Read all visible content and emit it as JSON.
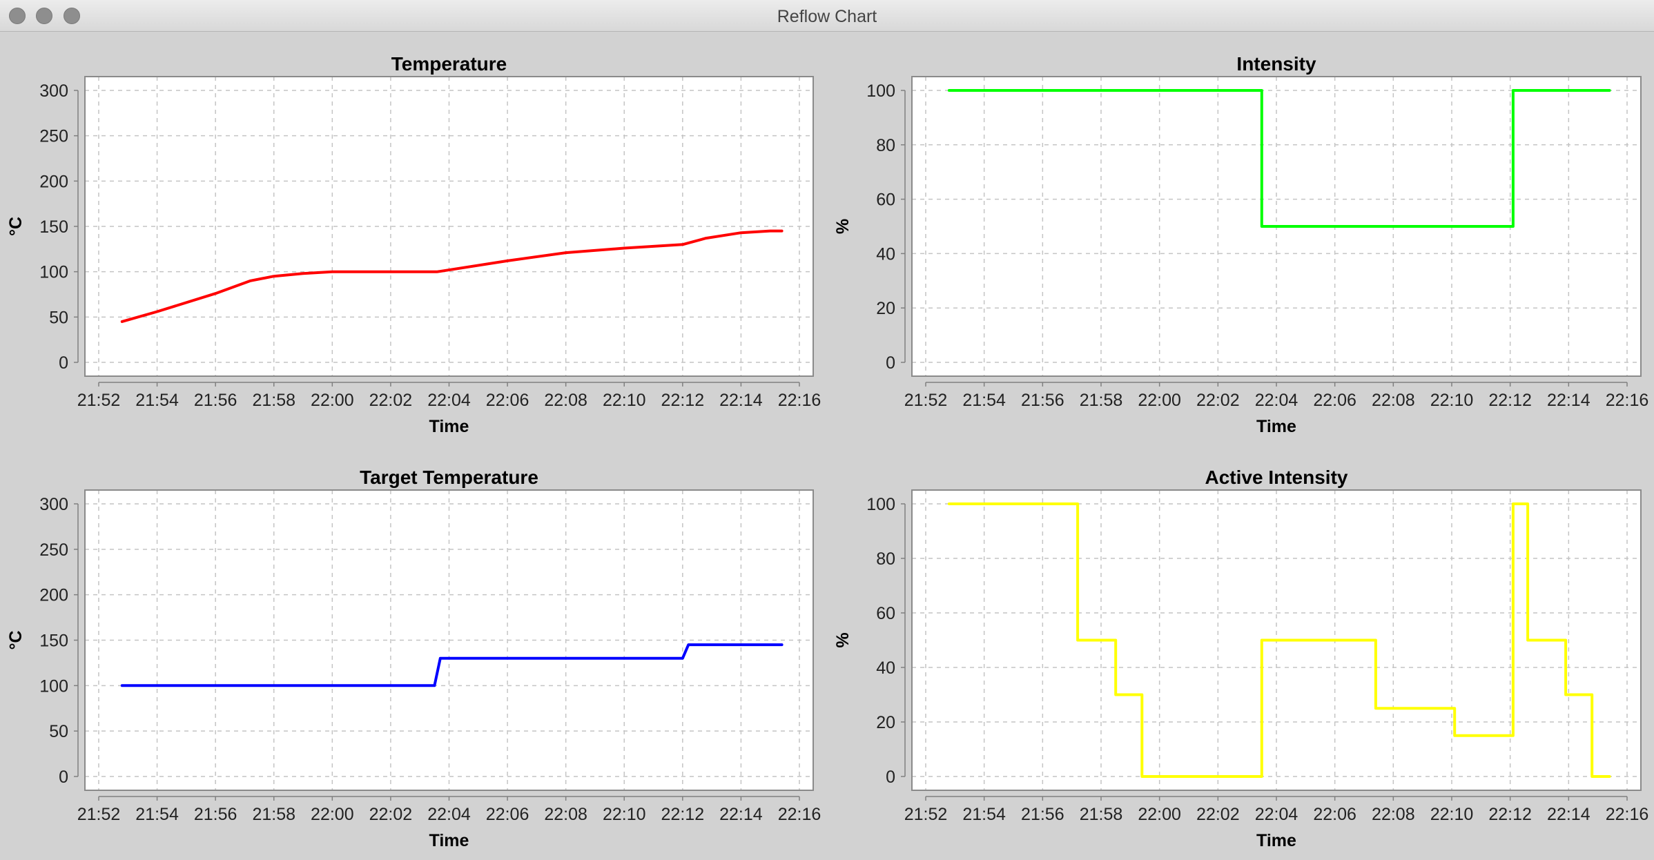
{
  "window": {
    "title": "Reflow Chart"
  },
  "chart_data": [
    {
      "type": "line",
      "title": "Temperature",
      "xlabel": "Time",
      "ylabel": "°C",
      "color": "#ff0000",
      "ylim": [
        0,
        300
      ],
      "yticks": [
        0,
        50,
        100,
        150,
        200,
        250,
        300
      ],
      "xlim": [
        "21:52",
        "22:16"
      ],
      "xticks": [
        "21:52",
        "21:54",
        "21:56",
        "21:58",
        "22:00",
        "22:02",
        "22:04",
        "22:06",
        "22:08",
        "22:10",
        "22:12",
        "22:14",
        "22:16"
      ],
      "grid": true,
      "legend": false,
      "series": [
        {
          "x": [
            "21:52:48",
            "21:54:00",
            "21:56:00",
            "21:57:12",
            "21:58:00",
            "21:59:00",
            "22:00:00",
            "22:03:36",
            "22:06:00",
            "22:08:00",
            "22:10:00",
            "22:12:00",
            "22:12:48",
            "22:14:00",
            "22:15:00",
            "22:15:24"
          ],
          "y": [
            45,
            56,
            76,
            90,
            95,
            98,
            100,
            100,
            112,
            121,
            126,
            130,
            137,
            143,
            145,
            145
          ]
        }
      ]
    },
    {
      "type": "line",
      "title": "Intensity",
      "xlabel": "Time",
      "ylabel": "%",
      "color": "#00ff00",
      "ylim": [
        0,
        100
      ],
      "yticks": [
        0,
        20,
        40,
        60,
        80,
        100
      ],
      "xlim": [
        "21:52",
        "22:16"
      ],
      "xticks": [
        "21:52",
        "21:54",
        "21:56",
        "21:58",
        "22:00",
        "22:02",
        "22:04",
        "22:06",
        "22:08",
        "22:10",
        "22:12",
        "22:14",
        "22:16"
      ],
      "grid": true,
      "legend": false,
      "series": [
        {
          "x": [
            "21:52:48",
            "22:03:30",
            "22:03:30",
            "22:12:06",
            "22:12:06",
            "22:15:24"
          ],
          "y": [
            100,
            100,
            50,
            50,
            100,
            100
          ]
        }
      ]
    },
    {
      "type": "line",
      "title": "Target Temperature",
      "xlabel": "Time",
      "ylabel": "°C",
      "color": "#0000ff",
      "ylim": [
        0,
        300
      ],
      "yticks": [
        0,
        50,
        100,
        150,
        200,
        250,
        300
      ],
      "xlim": [
        "21:52",
        "22:16"
      ],
      "xticks": [
        "21:52",
        "21:54",
        "21:56",
        "21:58",
        "22:00",
        "22:02",
        "22:04",
        "22:06",
        "22:08",
        "22:10",
        "22:12",
        "22:14",
        "22:16"
      ],
      "grid": true,
      "legend": false,
      "series": [
        {
          "x": [
            "21:52:48",
            "22:03:30",
            "22:03:42",
            "22:12:00",
            "22:12:12",
            "22:15:24"
          ],
          "y": [
            100,
            100,
            130,
            130,
            145,
            145
          ]
        }
      ]
    },
    {
      "type": "line",
      "title": "Active Intensity",
      "xlabel": "Time",
      "ylabel": "%",
      "color": "#ffff00",
      "ylim": [
        0,
        100
      ],
      "yticks": [
        0,
        20,
        40,
        60,
        80,
        100
      ],
      "xlim": [
        "21:52",
        "22:16"
      ],
      "xticks": [
        "21:52",
        "21:54",
        "21:56",
        "21:58",
        "22:00",
        "22:02",
        "22:04",
        "22:06",
        "22:08",
        "22:10",
        "22:12",
        "22:14",
        "22:16"
      ],
      "grid": true,
      "legend": false,
      "series": [
        {
          "x": [
            "21:52:48",
            "21:57:12",
            "21:57:12",
            "21:58:30",
            "21:58:30",
            "21:59:24",
            "21:59:24",
            "22:03:30",
            "22:03:30",
            "22:07:24",
            "22:07:24",
            "22:10:06",
            "22:10:06",
            "22:12:06",
            "22:12:06",
            "22:12:36",
            "22:12:36",
            "22:13:54",
            "22:13:54",
            "22:14:48",
            "22:14:48",
            "22:15:24"
          ],
          "y": [
            100,
            100,
            50,
            50,
            30,
            30,
            0,
            0,
            50,
            50,
            25,
            25,
            15,
            15,
            100,
            100,
            50,
            50,
            30,
            30,
            0,
            0
          ]
        }
      ]
    }
  ]
}
